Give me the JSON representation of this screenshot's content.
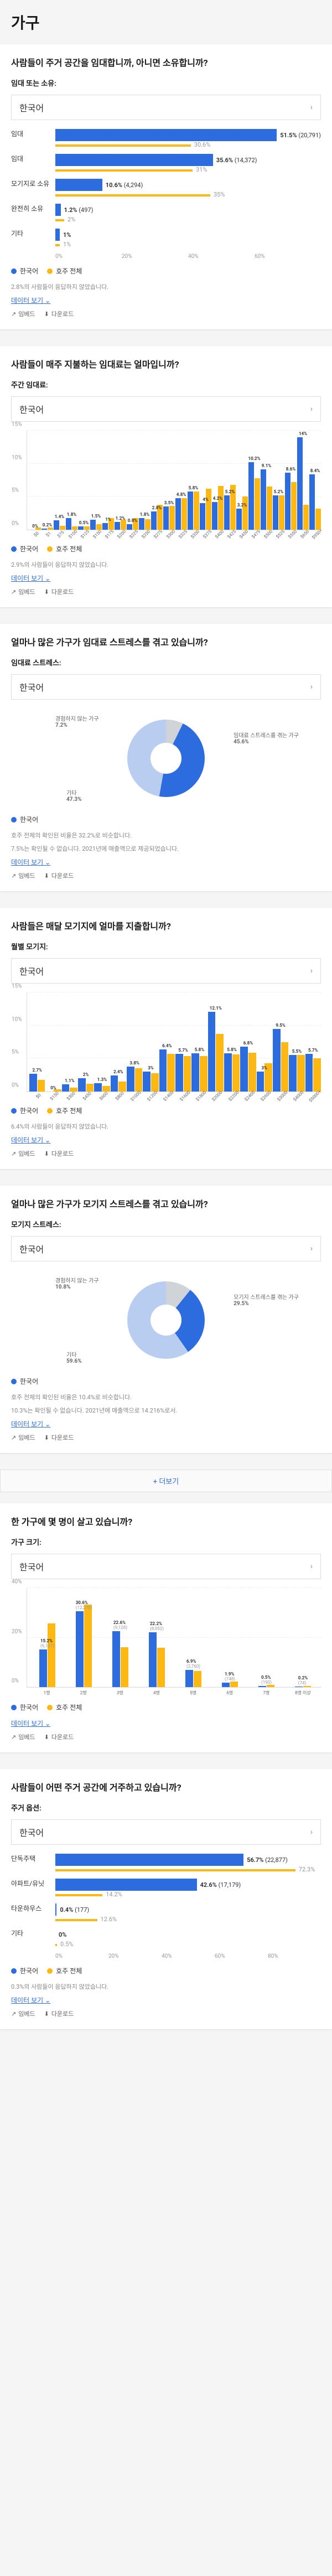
{
  "page_title": "가구",
  "colors": {
    "blue": "#2d6cdf",
    "yellow": "#fdb813",
    "lightblue": "#b8cdf0",
    "gray": "#888888"
  },
  "legend_local": "한국어",
  "legend_compare": "호주 전체",
  "selector_text": "한국어",
  "link_more": "데이터 보기",
  "action_embed": "임베드",
  "action_download": "다운로드",
  "more_button": "+ 더보기",
  "cards": {
    "c1": {
      "title": "사람들이 주거 공간을 임대합니까, 아니면 소유합니까?",
      "subtitle": "임대 또는 소유:",
      "note": "2.8%의 사람들이 응답하지 않았습니다.",
      "rows": [
        {
          "label": "임대",
          "pct": 51.5,
          "count": "(20,791)",
          "comp": 30.6
        },
        {
          "label": "임대",
          "pct": 35.6,
          "count": "(14,372)",
          "comp": 31.0
        },
        {
          "label": "모기지로 소유",
          "pct": 10.6,
          "count": "(4,294)",
          "comp": 35.0
        },
        {
          "label": "완전히 소유",
          "pct": 1.2,
          "count": "(497)",
          "comp": 2.0
        },
        {
          "label": "기타",
          "pct": 1.0,
          "count": "",
          "comp": 1.0
        }
      ],
      "axis": [
        "0%",
        "20%",
        "40%",
        "60%"
      ]
    },
    "c2": {
      "title": "사람들이 매주 지불하는 임대료는 얼마입니까?",
      "subtitle": "주간 임대료:",
      "note": "2.9%의 사람들이 응답하지 않았습니다.",
      "ymax": 15,
      "categories": [
        "$0",
        "$1",
        "$75",
        "$100",
        "$125",
        "$150",
        "$175",
        "$200",
        "$225",
        "$250",
        "$275",
        "$300",
        "$325",
        "$350",
        "$375",
        "$400",
        "$425",
        "$450",
        "$475",
        "$500",
        "$525",
        "$550",
        "$650",
        "$950+"
      ],
      "series1": [
        0.0,
        0.2,
        1.4,
        1.8,
        0.5,
        1.5,
        1.0,
        1.2,
        0.8,
        1.8,
        2.8,
        3.5,
        4.8,
        5.8,
        4.0,
        4.2,
        5.2,
        3.2,
        10.2,
        9.1,
        5.2,
        8.6,
        14.0,
        8.4
      ],
      "series2": [
        0.3,
        0.3,
        0.6,
        0.5,
        0.5,
        0.8,
        1.8,
        1.5,
        1.8,
        1.6,
        3.8,
        3.6,
        4.8,
        5.8,
        6.2,
        6.6,
        6.8,
        5.0,
        7.8,
        6.5,
        5.2,
        7.2,
        3.8,
        3.2
      ]
    },
    "c3": {
      "title": "얼마나 많은 가구가 임대료 스트레스를 겪고 있습니까?",
      "subtitle": "임대료 스트레스:",
      "note1": "호주 전체의 확인된 비율은 32.2%로 비슷합니다.",
      "note2": "7.5%는 확인될 수 없습니다. 2021년에 매출액으로 제공되었습니다.",
      "slices": [
        {
          "label": "경험하지 않는 가구",
          "pct": 7.2,
          "color": "#d0d4d8"
        },
        {
          "label": "임대료 스트레스를 겪는 가구",
          "pct": 45.6,
          "color": "#2d6cdf"
        },
        {
          "label": "기타",
          "pct": 47.3,
          "color": "#b8cdf0"
        }
      ]
    },
    "c4": {
      "title": "사람들은 매달 모기지에 얼마를 지출합니까?",
      "subtitle": "월별 모기지:",
      "note": "6.4%의 사람들이 응답하지 않았습니다.",
      "ymax": 15,
      "categories": [
        "$0",
        "$150",
        "$300",
        "$450",
        "$600",
        "$800",
        "$1000",
        "$1200",
        "$1400",
        "$1600",
        "$1800",
        "$2000",
        "$2200",
        "$2400",
        "$2600",
        "$3000",
        "$4000",
        "$5000+"
      ],
      "series1": [
        2.7,
        0.0,
        1.1,
        2.0,
        1.3,
        2.4,
        3.8,
        3.0,
        6.4,
        5.7,
        5.8,
        12.1,
        5.8,
        6.8,
        3.0,
        9.5,
        5.5,
        5.7
      ],
      "series2": [
        1.8,
        0.3,
        0.6,
        1.2,
        0.8,
        1.5,
        3.5,
        2.8,
        5.7,
        5.4,
        5.4,
        8.7,
        5.6,
        5.9,
        4.3,
        7.5,
        5.5,
        5.0
      ]
    },
    "c5": {
      "title": "얼마나 많은 가구가 모기지 스트레스를 겪고 있습니까?",
      "subtitle": "모기지 스트레스:",
      "note1": "호주 전체의 확인된 비율은 10.4%로 비슷합니다.",
      "note2": "10.3%는 확인될 수 없습니다. 2021년에 매출액으로 14.216%로서.",
      "slices": [
        {
          "label": "경험하지 않는 가구",
          "pct": 10.8,
          "color": "#d0d4d8"
        },
        {
          "label": "모기지 스트레스를 겪는 가구",
          "pct": 29.5,
          "color": "#2d6cdf"
        },
        {
          "label": "기타",
          "pct": 59.6,
          "color": "#b8cdf0"
        }
      ]
    },
    "c6": {
      "title": "한 가구에 몇 명이 살고 있습니까?",
      "subtitle": "가구 크기:",
      "ymax": 40,
      "categories": [
        "1명",
        "2명",
        "3명",
        "4명",
        "5명",
        "6명",
        "7명",
        "8명 이상"
      ],
      "series1": [
        15.2,
        30.6,
        22.6,
        22.2,
        6.9,
        1.9,
        0.5,
        0.2
      ],
      "series2": [
        25.6,
        33.2,
        16.1,
        15.8,
        6.5,
        2.2,
        0.8,
        0.4
      ],
      "counts": [
        "(6,127)",
        "(12,270)",
        "(9,128)",
        "(8,952)",
        "(2,760)",
        "(748)",
        "(190)",
        "(74)"
      ]
    },
    "c7": {
      "title": "사람들이 어떤 주거 공간에 거주하고 있습니까?",
      "subtitle": "주거 옵션:",
      "note": "0.3%의 사람들이 응답하지 않았습니다.",
      "rows": [
        {
          "label": "단독주택",
          "pct": 56.7,
          "count": "(22,877)",
          "comp": 72.3
        },
        {
          "label": "아파트/유닛",
          "pct": 42.6,
          "count": "(17,179)",
          "comp": 14.2
        },
        {
          "label": "타운하우스",
          "pct": 0.4,
          "count": "(177)",
          "comp": 12.6
        },
        {
          "label": "기타",
          "pct": 0.0,
          "count": "",
          "comp": 0.5
        }
      ],
      "axis": [
        "0%",
        "20%",
        "40%",
        "60%",
        "80%"
      ]
    }
  }
}
